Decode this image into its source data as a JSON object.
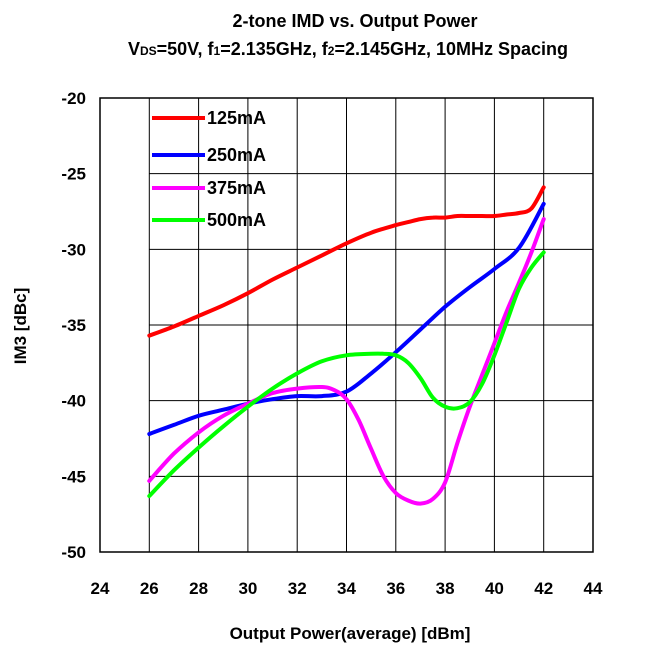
{
  "chart_data": {
    "type": "line",
    "title": "2-tone IMD vs. Output Power",
    "subtitle": {
      "vds_v": "V",
      "vds_sub": "DS",
      "vds_rest": "=50V, f",
      "f1_sub": "1",
      "f1_rest": "=2.135GHz, f",
      "f2_sub": "2",
      "f2_rest": "=2.145GHz, 10MHz Spacing"
    },
    "xlabel": "Output Power(average) [dBm]",
    "ylabel": "IM3 [dBc]",
    "xlim": [
      24,
      44
    ],
    "ylim": [
      -50,
      -20
    ],
    "xticks": [
      24,
      26,
      28,
      30,
      32,
      34,
      36,
      38,
      40,
      42,
      44
    ],
    "yticks": [
      -20,
      -25,
      -30,
      -35,
      -40,
      -45,
      -50
    ],
    "grid": true,
    "legend_position": "top-left",
    "series": [
      {
        "name": "125mA",
        "color": "#ff0000",
        "x": [
          26,
          27,
          28,
          29,
          30,
          31,
          32,
          33,
          34,
          35,
          36,
          36.5,
          37,
          37.5,
          38,
          38.5,
          39,
          39.5,
          40,
          40.5,
          41,
          41.5,
          42
        ],
        "y": [
          -35.7,
          -35.1,
          -34.4,
          -33.7,
          -32.9,
          -32.0,
          -31.2,
          -30.4,
          -29.6,
          -28.9,
          -28.4,
          -28.2,
          -28.0,
          -27.9,
          -27.9,
          -27.8,
          -27.8,
          -27.8,
          -27.8,
          -27.7,
          -27.6,
          -27.3,
          -25.9
        ]
      },
      {
        "name": "250mA",
        "color": "#0000ff",
        "x": [
          26,
          27,
          28,
          29,
          30,
          31,
          32,
          33,
          34,
          35,
          36,
          37,
          38,
          39,
          40,
          41,
          42
        ],
        "y": [
          -42.2,
          -41.6,
          -41.0,
          -40.6,
          -40.2,
          -39.9,
          -39.7,
          -39.7,
          -39.4,
          -38.2,
          -36.8,
          -35.3,
          -33.8,
          -32.5,
          -31.3,
          -29.9,
          -27.0
        ]
      },
      {
        "name": "375mA",
        "color": "#ff00ff",
        "x": [
          26,
          27,
          28,
          29,
          30,
          31,
          32,
          33,
          33.5,
          34,
          34.5,
          35,
          35.5,
          36,
          36.5,
          37,
          37.5,
          38,
          38.5,
          39,
          39.5,
          40,
          40.5,
          41,
          41.5,
          42
        ],
        "y": [
          -45.3,
          -43.5,
          -42.1,
          -41.0,
          -40.2,
          -39.5,
          -39.2,
          -39.1,
          -39.3,
          -39.9,
          -41.3,
          -43.2,
          -45.0,
          -46.1,
          -46.6,
          -46.8,
          -46.5,
          -45.4,
          -42.8,
          -40.4,
          -38.3,
          -36.2,
          -34.1,
          -32.2,
          -30.2,
          -28.0
        ]
      },
      {
        "name": "500mA",
        "color": "#00ff00",
        "x": [
          26,
          27,
          28,
          29,
          30,
          31,
          32,
          33,
          34,
          35,
          35.5,
          36,
          36.5,
          37,
          37.5,
          38,
          38.5,
          39,
          39.5,
          40,
          40.5,
          41,
          41.5,
          42
        ],
        "y": [
          -46.3,
          -44.6,
          -43.1,
          -41.7,
          -40.4,
          -39.2,
          -38.2,
          -37.4,
          -37.0,
          -36.9,
          -36.9,
          -37.0,
          -37.5,
          -38.5,
          -39.8,
          -40.4,
          -40.5,
          -40.1,
          -38.9,
          -37.0,
          -34.8,
          -32.6,
          -31.2,
          -30.2
        ]
      }
    ]
  }
}
